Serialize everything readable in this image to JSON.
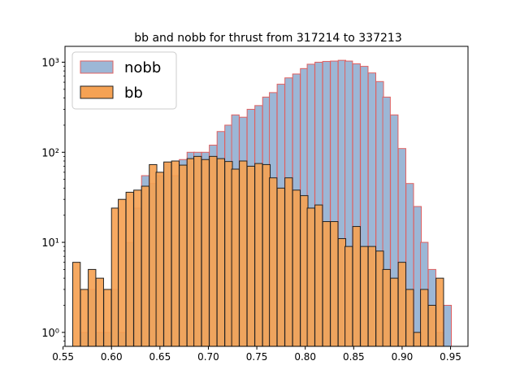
{
  "chart_data": {
    "type": "bar",
    "title": "bb and nobb for thrust from 317214 to 337213",
    "xlabel": "",
    "ylabel": "",
    "y_scale": "log",
    "xlim": [
      0.552,
      0.968
    ],
    "ylim": [
      0.7,
      1500
    ],
    "bin_width": 0.0078,
    "grid": false,
    "legend_position": "top-left",
    "x_ticks": [
      0.55,
      0.6,
      0.65,
      0.7,
      0.75,
      0.8,
      0.85,
      0.9,
      0.95
    ],
    "x_tick_labels": [
      "0.55",
      "0.60",
      "0.65",
      "0.70",
      "0.75",
      "0.80",
      "0.85",
      "0.90",
      "0.95"
    ],
    "y_ticks": [
      1,
      10,
      100,
      1000
    ],
    "y_tick_labels": [
      "10⁰",
      "10¹",
      "10²",
      "10³"
    ],
    "series": [
      {
        "name": "nobb",
        "fill": "#9cb7d6",
        "edge": "#e06060",
        "bins": [
          [
            0.568,
            1
          ],
          [
            0.576,
            3
          ],
          [
            0.584,
            1
          ],
          [
            0.592,
            1
          ],
          [
            0.6,
            3
          ],
          [
            0.607,
            1
          ],
          [
            0.615,
            10
          ],
          [
            0.623,
            24
          ],
          [
            0.631,
            55
          ],
          [
            0.639,
            45
          ],
          [
            0.646,
            55
          ],
          [
            0.654,
            75
          ],
          [
            0.662,
            55
          ],
          [
            0.67,
            83
          ],
          [
            0.678,
            100
          ],
          [
            0.685,
            100
          ],
          [
            0.693,
            100
          ],
          [
            0.701,
            120
          ],
          [
            0.709,
            170
          ],
          [
            0.717,
            200
          ],
          [
            0.724,
            260
          ],
          [
            0.732,
            245
          ],
          [
            0.74,
            300
          ],
          [
            0.748,
            330
          ],
          [
            0.756,
            410
          ],
          [
            0.763,
            460
          ],
          [
            0.771,
            570
          ],
          [
            0.779,
            670
          ],
          [
            0.787,
            740
          ],
          [
            0.795,
            850
          ],
          [
            0.802,
            950
          ],
          [
            0.81,
            1000
          ],
          [
            0.818,
            1020
          ],
          [
            0.826,
            1030
          ],
          [
            0.834,
            1050
          ],
          [
            0.841,
            1030
          ],
          [
            0.849,
            960
          ],
          [
            0.857,
            900
          ],
          [
            0.865,
            760
          ],
          [
            0.873,
            610
          ],
          [
            0.88,
            410
          ],
          [
            0.888,
            260
          ],
          [
            0.896,
            110
          ],
          [
            0.904,
            45
          ],
          [
            0.912,
            25
          ],
          [
            0.919,
            10
          ],
          [
            0.927,
            5
          ],
          [
            0.935,
            1
          ],
          [
            0.943,
            2
          ]
        ]
      },
      {
        "name": "bb",
        "fill": "#f5a254",
        "edge": "#222222",
        "bins": [
          [
            0.56,
            6
          ],
          [
            0.568,
            3
          ],
          [
            0.576,
            5
          ],
          [
            0.584,
            4
          ],
          [
            0.592,
            3
          ],
          [
            0.6,
            24
          ],
          [
            0.607,
            30
          ],
          [
            0.615,
            36
          ],
          [
            0.623,
            38
          ],
          [
            0.631,
            42
          ],
          [
            0.639,
            73
          ],
          [
            0.646,
            60
          ],
          [
            0.654,
            78
          ],
          [
            0.662,
            80
          ],
          [
            0.67,
            72
          ],
          [
            0.678,
            85
          ],
          [
            0.685,
            90
          ],
          [
            0.693,
            83
          ],
          [
            0.701,
            90
          ],
          [
            0.709,
            85
          ],
          [
            0.717,
            79
          ],
          [
            0.724,
            65
          ],
          [
            0.732,
            80
          ],
          [
            0.74,
            70
          ],
          [
            0.748,
            75
          ],
          [
            0.756,
            73
          ],
          [
            0.763,
            52
          ],
          [
            0.771,
            40
          ],
          [
            0.779,
            52
          ],
          [
            0.787,
            38
          ],
          [
            0.795,
            33
          ],
          [
            0.802,
            24
          ],
          [
            0.81,
            26
          ],
          [
            0.818,
            17
          ],
          [
            0.826,
            17
          ],
          [
            0.834,
            11
          ],
          [
            0.841,
            9
          ],
          [
            0.849,
            15
          ],
          [
            0.857,
            9
          ],
          [
            0.865,
            9
          ],
          [
            0.873,
            8
          ],
          [
            0.88,
            5
          ],
          [
            0.888,
            4
          ],
          [
            0.896,
            6
          ],
          [
            0.904,
            3
          ],
          [
            0.912,
            1
          ],
          [
            0.919,
            3
          ],
          [
            0.927,
            2
          ],
          [
            0.935,
            4
          ]
        ]
      }
    ]
  }
}
